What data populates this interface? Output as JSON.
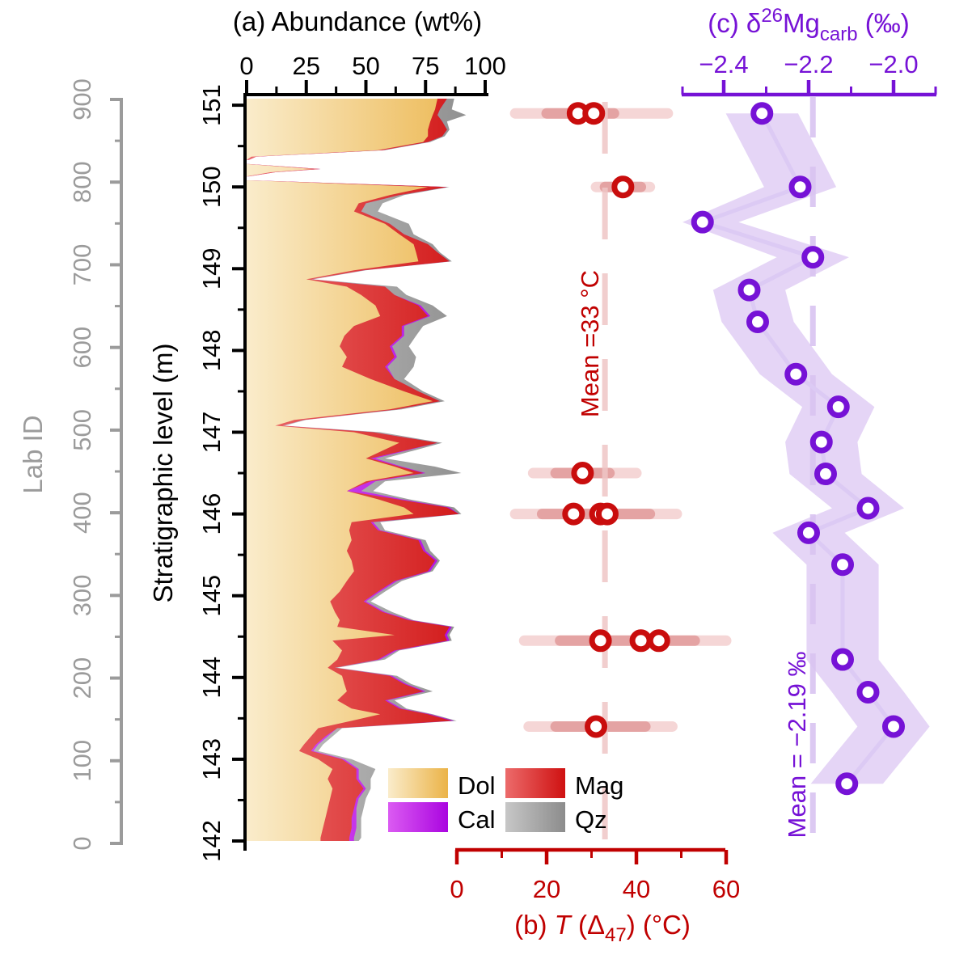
{
  "chart_data": [
    {
      "panel": "a",
      "type": "area",
      "title": "(a) Abundance (wt%)",
      "x_axis": {
        "label": "Abundance (wt%)",
        "range": [
          0,
          100
        ],
        "ticks": [
          0,
          25,
          50,
          75,
          100
        ],
        "tick_labels": [
          "0",
          "25",
          "50",
          "75",
          "100"
        ],
        "minor_ticks": [
          12.5,
          37.5,
          62.5,
          87.5
        ],
        "color": "#000000"
      },
      "y_axis": {
        "label": "Stratigraphic level (m)",
        "range": [
          142,
          151.2
        ],
        "ticks": [
          142,
          143,
          144,
          145,
          146,
          147,
          148,
          149,
          150,
          151
        ],
        "minor_ticks": [
          142.5,
          143.5,
          144.5,
          145.5,
          146.5,
          147.5,
          148.5,
          149.5,
          150.5
        ],
        "color": "#000000"
      },
      "lab_axis": {
        "label": "Lab ID",
        "range": [
          0,
          900
        ],
        "ticks": [
          0,
          100,
          200,
          300,
          400,
          500,
          600,
          700,
          800,
          900
        ],
        "minor_step": 50,
        "color": "#9B9B9B"
      },
      "legend": [
        {
          "label": "Dol",
          "color_from": "#FAECCB",
          "color_to": "#EBB347"
        },
        {
          "label": "Cal",
          "color_from": "#DB5BF2",
          "color_to": "#AA05E0"
        },
        {
          "label": "Mag",
          "color_from": "#EC6B6B",
          "color_to": "#CF1111"
        },
        {
          "label": "Qz",
          "color_from": "#C7C7C7",
          "color_to": "#8C8C8C"
        }
      ],
      "stack_order": [
        "Dol",
        "Mag",
        "Cal",
        "Qz"
      ],
      "columns": [
        "strat_level_m",
        "Dol_wt",
        "Mag_wt",
        "Cal_wt",
        "Qz_wt"
      ],
      "segments": [
        [
          [
            151.08,
            80,
            4,
            0,
            3
          ],
          [
            150.95,
            79,
            2,
            0,
            5
          ],
          [
            150.88,
            78,
            2,
            0,
            12
          ],
          [
            150.8,
            77,
            5,
            0,
            2
          ],
          [
            150.7,
            76,
            8,
            0,
            1
          ],
          [
            150.62,
            76,
            6,
            0,
            1
          ],
          [
            150.55,
            74,
            2,
            0,
            1
          ],
          [
            150.45,
            55,
            2,
            0,
            1
          ],
          [
            150.37,
            2,
            2,
            0,
            0
          ],
          [
            150.33,
            0,
            1,
            0,
            0
          ]
        ],
        [
          [
            150.28,
            0,
            1,
            0,
            0
          ],
          [
            150.22,
            28,
            3,
            0,
            0
          ],
          [
            150.18,
            10,
            2,
            0,
            0
          ],
          [
            150.13,
            0,
            1,
            0,
            0
          ]
        ],
        [
          [
            150.08,
            2,
            1,
            0,
            0
          ],
          [
            150.0,
            76,
            8,
            0,
            1
          ],
          [
            149.9,
            60,
            4,
            0,
            2
          ],
          [
            149.8,
            47,
            3,
            0,
            7
          ],
          [
            149.7,
            45,
            3,
            0,
            7
          ],
          [
            149.55,
            58,
            2,
            0,
            8
          ],
          [
            149.42,
            64,
            2,
            0,
            4
          ],
          [
            149.3,
            70,
            6,
            0,
            2
          ],
          [
            149.2,
            71,
            9,
            0,
            1
          ],
          [
            149.09,
            72,
            13,
            0,
            1
          ],
          [
            148.98,
            45,
            4,
            0,
            1
          ],
          [
            148.87,
            25,
            2,
            0,
            1
          ],
          [
            148.78,
            42,
            16,
            0,
            5
          ],
          [
            148.68,
            48,
            14,
            0,
            5
          ],
          [
            148.55,
            54,
            18,
            1,
            5
          ],
          [
            148.42,
            56,
            20,
            1,
            7
          ],
          [
            148.3,
            45,
            20,
            1,
            8
          ],
          [
            148.18,
            41,
            24,
            1,
            5
          ],
          [
            148.05,
            39,
            21,
            1,
            7
          ],
          [
            147.92,
            42,
            20,
            1,
            8
          ],
          [
            147.8,
            40,
            18,
            1,
            11
          ],
          [
            147.65,
            52,
            10,
            0,
            4
          ],
          [
            147.5,
            66,
            6,
            0,
            2
          ],
          [
            147.38,
            78,
            3,
            0,
            2
          ],
          [
            147.28,
            60,
            3,
            0,
            2
          ],
          [
            147.15,
            20,
            4,
            0,
            1
          ],
          [
            147.08,
            12,
            3,
            0,
            1
          ],
          [
            147.0,
            45,
            8,
            0,
            3
          ],
          [
            146.87,
            64,
            16,
            0,
            2
          ],
          [
            146.68,
            50,
            2,
            2,
            4
          ],
          [
            146.58,
            62,
            2,
            1,
            14
          ],
          [
            146.5,
            70,
            4,
            1,
            15
          ],
          [
            146.4,
            50,
            2,
            2,
            4
          ],
          [
            146.28,
            42,
            0,
            6,
            5
          ],
          [
            146.18,
            55,
            8,
            2,
            3
          ],
          [
            146.08,
            66,
            18,
            1,
            2
          ],
          [
            146.0,
            70,
            19,
            0,
            1
          ],
          [
            145.9,
            44,
            8,
            1,
            3
          ],
          [
            145.8,
            43,
            12,
            1,
            2
          ],
          [
            145.68,
            44,
            28,
            1,
            2
          ],
          [
            145.55,
            42,
            32,
            1,
            2
          ],
          [
            145.43,
            44,
            35,
            1,
            1
          ],
          [
            145.3,
            45,
            31,
            1,
            1
          ],
          [
            145.18,
            42,
            20,
            1,
            2
          ],
          [
            145.05,
            39,
            16,
            1,
            2
          ],
          [
            144.93,
            35,
            14,
            1,
            2
          ],
          [
            144.8,
            37,
            20,
            1,
            3
          ],
          [
            144.7,
            39,
            29,
            1,
            1
          ],
          [
            144.62,
            38,
            47,
            1,
            1
          ],
          [
            144.52,
            62,
            21,
            1,
            1
          ],
          [
            144.45,
            36,
            48,
            1,
            1
          ],
          [
            144.33,
            40,
            22,
            1,
            1
          ],
          [
            144.22,
            38,
            17,
            1,
            2
          ],
          [
            144.12,
            34,
            3,
            0,
            1
          ],
          [
            144.02,
            40,
            20,
            1,
            2
          ],
          [
            143.92,
            41,
            25,
            1,
            2
          ],
          [
            143.83,
            42,
            32,
            1,
            3
          ],
          [
            143.72,
            38,
            20,
            1,
            3
          ],
          [
            143.62,
            44,
            20,
            1,
            2
          ],
          [
            143.55,
            56,
            20,
            1,
            1
          ],
          [
            143.47,
            44,
            42,
            1,
            1
          ],
          [
            143.38,
            30,
            8,
            0,
            2
          ],
          [
            143.28,
            27,
            6,
            1,
            2
          ],
          [
            143.18,
            24,
            5,
            1,
            2
          ],
          [
            143.1,
            22,
            5,
            1,
            2
          ],
          [
            143.0,
            30,
            10,
            1,
            3
          ],
          [
            142.88,
            36,
            10,
            1,
            7
          ],
          [
            142.76,
            34,
            12,
            1,
            5
          ],
          [
            142.64,
            36,
            13,
            1,
            2
          ],
          [
            142.52,
            35,
            11,
            1,
            3
          ],
          [
            142.4,
            34,
            11,
            1,
            3
          ],
          [
            142.28,
            33,
            11,
            2,
            2
          ],
          [
            142.16,
            32,
            12,
            2,
            2
          ],
          [
            142.04,
            31,
            12,
            2,
            3
          ],
          [
            142.0,
            31,
            12,
            2,
            2
          ]
        ]
      ]
    },
    {
      "panel": "b",
      "type": "scatter",
      "title_parts": {
        "pre": "(b) ",
        "italic": "T",
        "mid": " (Δ",
        "sub": "47",
        "post": ") (°C)"
      },
      "x_axis": {
        "range": [
          0,
          60
        ],
        "ticks": [
          0,
          20,
          40,
          60
        ],
        "tick_labels": [
          "0",
          "20",
          "40",
          "60"
        ],
        "minor_ticks": [
          10,
          30,
          50
        ],
        "color": "#C00000"
      },
      "mean": {
        "value": 33,
        "label": "Mean =33 °C"
      },
      "colors": {
        "point": "#C90D0D",
        "bar_outer": "#F5D6D6",
        "bar_inner": "#E4A3A3",
        "mean_dash": "#EFC6C6"
      },
      "rows": [
        {
          "strat": 150.9,
          "t": [
            27,
            30.5
          ],
          "outer": [
            13,
            47
          ],
          "inner": [
            20,
            35
          ]
        },
        {
          "strat": 150.0,
          "t": [
            37
          ],
          "outer": [
            31,
            43
          ],
          "inner": [
            33,
            41
          ]
        },
        {
          "strat": 146.5,
          "t": [
            28
          ],
          "outer": [
            17,
            40
          ],
          "inner": [
            22,
            34
          ]
        },
        {
          "strat": 146.0,
          "t": [
            26,
            32,
            33.5
          ],
          "outer": [
            13,
            49
          ],
          "inner": [
            19,
            43
          ]
        },
        {
          "strat": 144.45,
          "t": [
            32,
            41,
            45
          ],
          "outer": [
            15,
            60
          ],
          "inner": [
            23,
            53
          ]
        },
        {
          "strat": 143.4,
          "t": [
            31
          ],
          "outer": [
            16,
            48
          ],
          "inner": [
            22,
            42
          ]
        }
      ]
    },
    {
      "panel": "c",
      "type": "line-scatter",
      "title_parts": {
        "pre": "(c) δ",
        "sup": "26",
        "mid": "Mg",
        "sub": "carb",
        "post": " (‰)"
      },
      "x_axis": {
        "range": [
          -2.5,
          -1.9
        ],
        "ticks": [
          -2.4,
          -2.2,
          -2.0
        ],
        "tick_labels": [
          "−2.4",
          "−2.2",
          "−2.0"
        ],
        "minor_ticks": [
          -2.5,
          -2.3,
          -2.1,
          -1.9
        ],
        "color": "#7612D6"
      },
      "mean": {
        "value": -2.19,
        "label": "Mean = −2.19 ‰"
      },
      "band_halfwidth": 0.085,
      "colors": {
        "point": "#7612D6",
        "band": "#E5D5F6",
        "line": "#DCCAF4",
        "mean_dash": "#D9C4F1"
      },
      "points": [
        {
          "strat": 150.9,
          "d26mg": -2.31
        },
        {
          "strat": 150.0,
          "d26mg": -2.22
        },
        {
          "strat": 149.57,
          "d26mg": -2.45
        },
        {
          "strat": 149.14,
          "d26mg": -2.19
        },
        {
          "strat": 148.74,
          "d26mg": -2.34
        },
        {
          "strat": 148.35,
          "d26mg": -2.32
        },
        {
          "strat": 147.71,
          "d26mg": -2.23
        },
        {
          "strat": 147.31,
          "d26mg": -2.13
        },
        {
          "strat": 146.88,
          "d26mg": -2.17
        },
        {
          "strat": 146.49,
          "d26mg": -2.16
        },
        {
          "strat": 146.07,
          "d26mg": -2.06
        },
        {
          "strat": 145.77,
          "d26mg": -2.2
        },
        {
          "strat": 145.38,
          "d26mg": -2.12
        },
        {
          "strat": 144.22,
          "d26mg": -2.12
        },
        {
          "strat": 143.82,
          "d26mg": -2.06
        },
        {
          "strat": 143.4,
          "d26mg": -2.0
        },
        {
          "strat": 142.7,
          "d26mg": -2.11
        }
      ]
    }
  ]
}
